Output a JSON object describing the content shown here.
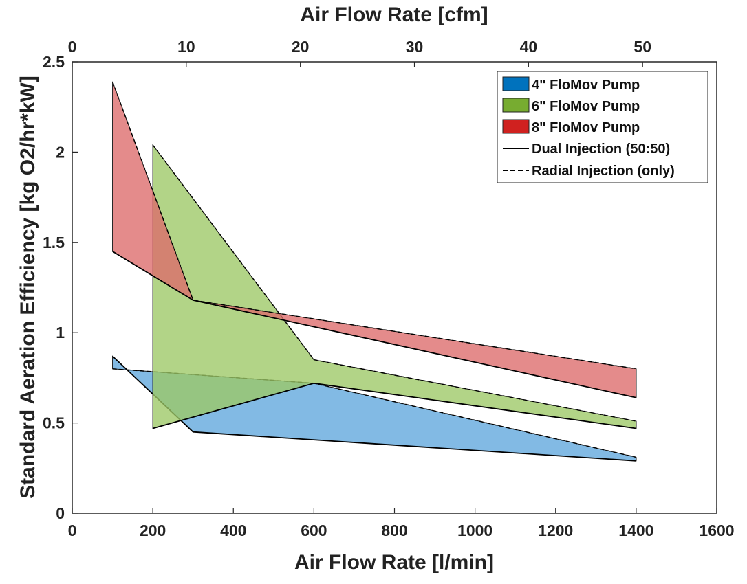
{
  "chart_data": {
    "type": "area",
    "xlabel": "Air Flow Rate [l/min]",
    "x2label": "Air Flow Rate [cfm]",
    "ylabel": "Standard Aeration Efficiency [kg O2/hr*kW]",
    "xlim": [
      0,
      1600
    ],
    "x2lim": [
      0,
      56.5
    ],
    "ylim": [
      0,
      2.5
    ],
    "xticks": [
      0,
      200,
      400,
      600,
      800,
      1000,
      1200,
      1400,
      1600
    ],
    "x2ticks": [
      0,
      10,
      20,
      30,
      40,
      50
    ],
    "yticks": [
      0,
      0.5,
      1,
      1.5,
      2,
      2.5
    ],
    "ytick_labels": [
      "0",
      "0.5",
      "1",
      "1.5",
      "2",
      "2.5"
    ],
    "grid": false,
    "legend_position": "top-right",
    "series": [
      {
        "name": "4\" FloMov Pump",
        "color": "#5fa7dc",
        "legend_color": "#0072bd",
        "dual_injection": {
          "x": [
            100,
            300,
            1400
          ],
          "y": [
            0.87,
            0.45,
            0.29
          ]
        },
        "radial_injection": {
          "x": [
            100,
            600,
            1400
          ],
          "y": [
            0.8,
            0.72,
            0.31
          ]
        }
      },
      {
        "name": "6\" FloMov Pump",
        "color": "#9cc865",
        "legend_color": "#77ac30",
        "dual_injection": {
          "x": [
            200,
            600,
            1400
          ],
          "y": [
            0.47,
            0.72,
            0.47
          ]
        },
        "radial_injection": {
          "x": [
            200,
            600,
            1400
          ],
          "y": [
            2.04,
            0.85,
            0.51
          ]
        }
      },
      {
        "name": "8\" FloMov Pump",
        "color": "#dc6a6a",
        "legend_color": "#d0211f",
        "dual_injection": {
          "x": [
            100,
            300,
            1400
          ],
          "y": [
            1.45,
            1.18,
            0.64
          ]
        },
        "radial_injection": {
          "x": [
            100,
            300,
            1400
          ],
          "y": [
            2.39,
            1.18,
            0.8
          ]
        }
      }
    ],
    "line_legend": [
      {
        "name": "Dual Injection (50:50)",
        "style": "solid"
      },
      {
        "name": "Radial Injection (only)",
        "style": "dashed"
      }
    ]
  }
}
